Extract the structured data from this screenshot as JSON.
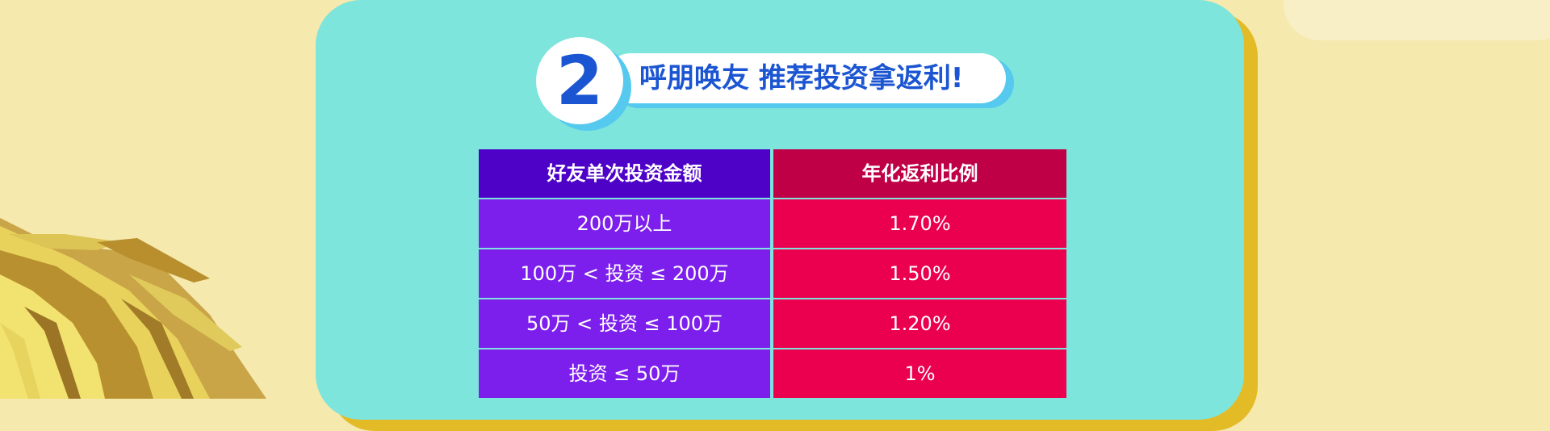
{
  "title": {
    "number": "2",
    "text": "呼朋唤友 推荐投资拿返利!"
  },
  "table": {
    "headers": [
      "好友单次投资金额",
      "年化返利比例"
    ],
    "rows": [
      [
        "200万以上",
        "1.70%"
      ],
      [
        "100万 < 投资 ≤ 200万",
        "1.50%"
      ],
      [
        "50万 < 投资 ≤ 100万",
        "1.20%"
      ],
      [
        "投资 ≤ 50万",
        "1%"
      ]
    ]
  },
  "colors": {
    "background": "#f5e9ad",
    "card": "#7de5dc",
    "card_shadow": "#e3bb27",
    "title_blue": "#1b55d2",
    "header_left": "#4e02c8",
    "header_right": "#bf0046",
    "cell_left": "#7d1fec",
    "cell_right": "#eb004f"
  }
}
